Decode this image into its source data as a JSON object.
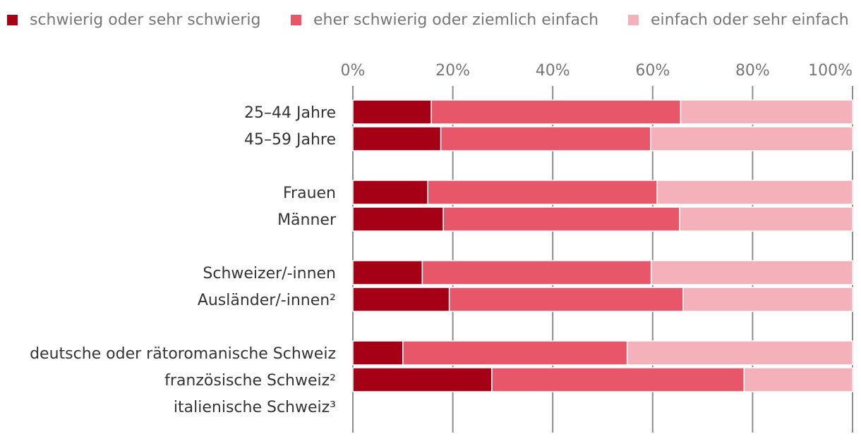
{
  "chart_data": {
    "type": "bar",
    "orientation": "horizontal",
    "stacked": true,
    "title": "",
    "xlabel": "",
    "ylabel": "",
    "xlim": [
      0,
      100
    ],
    "x_unit": "%",
    "x_ticks": [
      "0%",
      "20%",
      "40%",
      "60%",
      "80%",
      "100%"
    ],
    "grid": "vertical",
    "legend_position": "top",
    "categories": [
      "25–44 Jahre",
      "45–59 Jahre",
      "",
      "Frauen",
      "Männer",
      "",
      "Schweizer/-innen",
      "Ausländer/-innen²",
      "",
      "deutsche oder rätoromanische Schweiz",
      "französische Schweiz²",
      "italienische Schweiz³"
    ],
    "series": [
      {
        "name": "schwierig oder sehr schwierig",
        "color": "#a50016",
        "values": [
          15.7,
          17.6,
          null,
          15.0,
          18.1,
          null,
          13.9,
          19.3,
          null,
          10.0,
          27.8,
          null
        ]
      },
      {
        "name": "eher schwierig oder ziemlich einfach",
        "color": "#e8566a",
        "values": [
          49.9,
          42.0,
          null,
          45.9,
          47.3,
          null,
          45.8,
          46.8,
          null,
          44.9,
          50.5,
          null
        ]
      },
      {
        "name": "einfach oder sehr einfach",
        "color": "#f4b1b9",
        "values": [
          34.4,
          40.4,
          null,
          39.1,
          34.6,
          null,
          40.3,
          33.9,
          null,
          45.1,
          21.7,
          null
        ]
      }
    ]
  }
}
